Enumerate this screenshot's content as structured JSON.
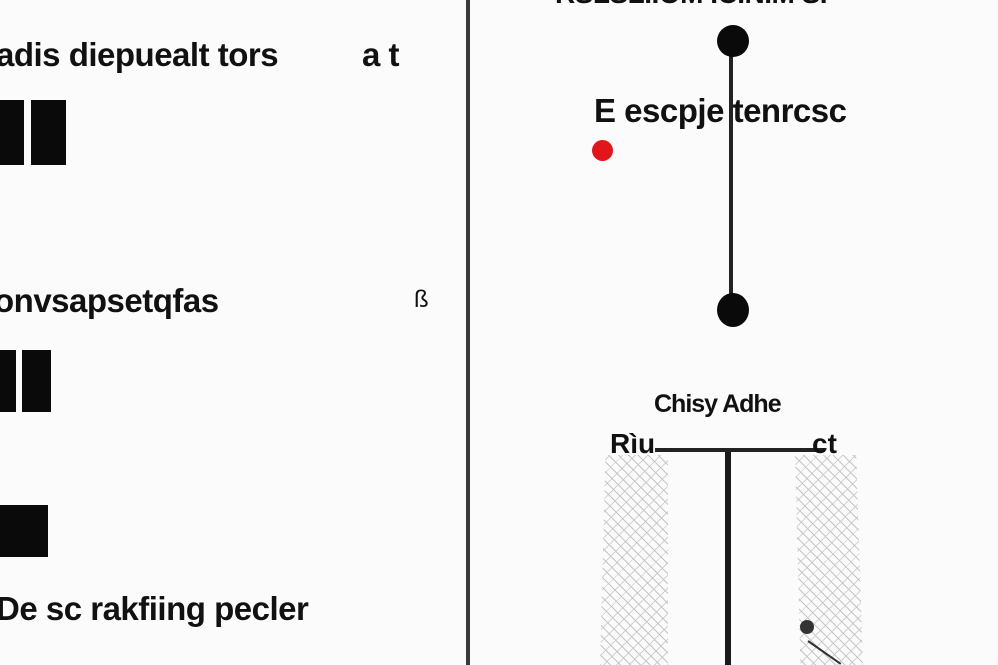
{
  "left_panel": {
    "heading_1": "adis diepuealt tors",
    "heading_1_suffix": "a t",
    "heading_2": "onvsapsetqfas",
    "heading_2_mark": "ß",
    "footer_text": "De sc rakfiing pecler"
  },
  "right_panel": {
    "top_title": "RSLSLIIOM ICINIM SI",
    "label_1": "E escpje tenrcsc",
    "section_title": "Chisy Adhe",
    "left_label": "Rìu",
    "right_label": "ct",
    "accent_color": "#e0161b"
  }
}
